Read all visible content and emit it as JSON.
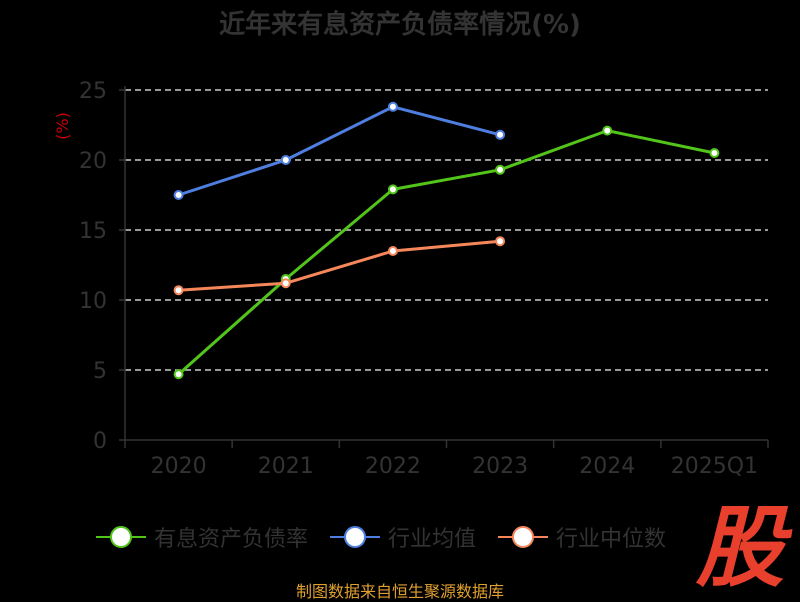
{
  "chart_data": {
    "type": "line",
    "title": "近年来有息资产负债率情况(%)",
    "ylabel": "(%)",
    "xlabel": "",
    "categories": [
      "2020",
      "2021",
      "2022",
      "2023",
      "2024",
      "2025Q1"
    ],
    "y_ticks": [
      "0",
      "5",
      "10",
      "15",
      "20",
      "25"
    ],
    "ylim": [
      0,
      25
    ],
    "grid": true,
    "legend_position": "bottom",
    "series": [
      {
        "name": "有息资产负债率",
        "color": "#52c41a",
        "values": [
          4.7,
          11.5,
          17.9,
          19.3,
          22.1,
          20.5
        ]
      },
      {
        "name": "行业均值",
        "color": "#4e7fe0",
        "values": [
          17.5,
          20.0,
          23.8,
          21.8,
          null,
          null
        ]
      },
      {
        "name": "行业中位数",
        "color": "#f5875a",
        "values": [
          10.7,
          11.2,
          13.5,
          14.2,
          null,
          null
        ]
      }
    ]
  },
  "watermark_text": "股",
  "source_note": "制图数据来自恒生聚源数据库"
}
